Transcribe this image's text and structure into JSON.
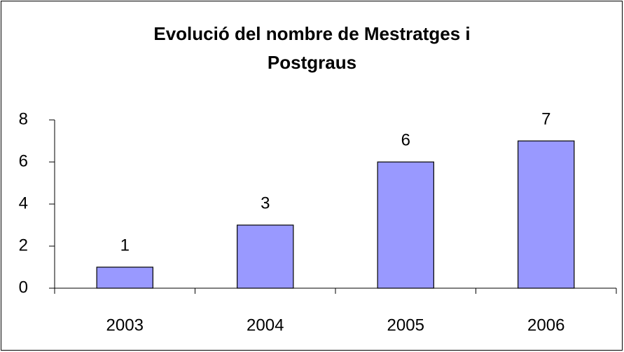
{
  "chart_data": {
    "type": "bar",
    "title": "Evolució del nombre de Mestratges i Postgraus",
    "categories": [
      "2003",
      "2004",
      "2005",
      "2006"
    ],
    "values": [
      1,
      3,
      6,
      7
    ],
    "color": "#9999ff",
    "ylim": [
      0,
      8
    ],
    "yticks": [
      0,
      2,
      4,
      6,
      8
    ],
    "grid": false
  }
}
